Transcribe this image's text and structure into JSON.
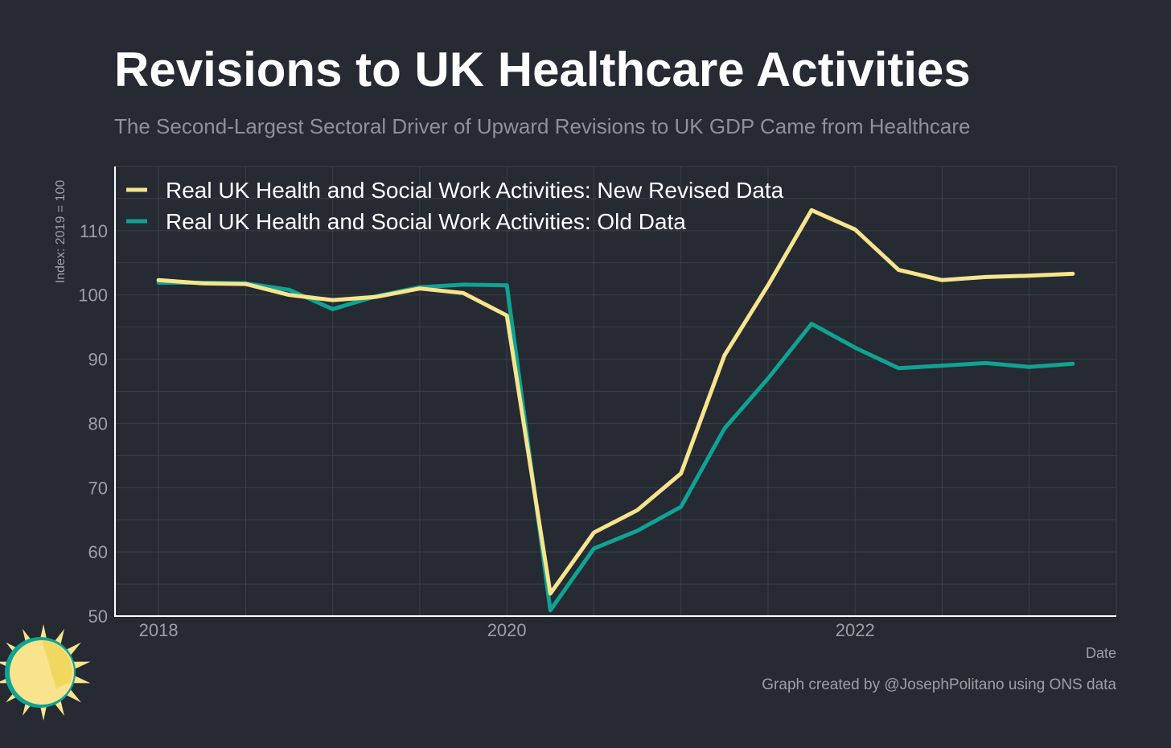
{
  "header": {
    "title": "Revisions to UK Healthcare Activities",
    "subtitle": "The Second-Largest Sectoral Driver of Upward Revisions to UK GDP Came from Healthcare"
  },
  "footer": {
    "credit": "Graph created by @JosephPolitano using ONS data"
  },
  "logo": {
    "icon": "sun-logo-icon"
  },
  "colors": {
    "background": "#252a33",
    "grid": "#3a404a",
    "axis": "#ffffff",
    "tick_text": "#9aa0a6",
    "new_series": "#f7e48c",
    "old_series": "#0fa394"
  },
  "chart_data": {
    "type": "line",
    "title": "Revisions to UK Healthcare Activities",
    "subtitle": "The Second-Largest Sectoral Driver of Upward Revisions to UK GDP Came from Healthcare",
    "xlabel": "Date",
    "ylabel": "Index: 2019 = 100",
    "xlim": [
      2017.75,
      2023.5
    ],
    "ylim": [
      50,
      120
    ],
    "xticks": [
      2018,
      2020,
      2022
    ],
    "yticks": [
      50,
      60,
      70,
      80,
      90,
      100,
      110
    ],
    "grid": true,
    "legend_position": "top-left",
    "x": [
      2018.0,
      2018.25,
      2018.5,
      2018.75,
      2019.0,
      2019.25,
      2019.5,
      2019.75,
      2020.0,
      2020.25,
      2020.5,
      2020.75,
      2021.0,
      2021.25,
      2021.5,
      2021.75,
      2022.0,
      2022.25,
      2022.5,
      2022.75,
      2023.0,
      2023.25
    ],
    "series": [
      {
        "name": "Real UK Health and Social Work Activities: New Revised Data",
        "color": "#f7e48c",
        "values": [
          102.3,
          101.8,
          101.7,
          100.0,
          99.2,
          99.7,
          101.0,
          100.3,
          96.8,
          53.5,
          63.0,
          66.5,
          72.2,
          90.6,
          101.5,
          113.2,
          110.2,
          103.9,
          102.3,
          102.8,
          103.0,
          103.3
        ]
      },
      {
        "name": "Real UK Health and Social Work Activities: Old Data",
        "color": "#0fa394",
        "values": [
          101.9,
          101.9,
          101.8,
          100.8,
          97.8,
          99.8,
          101.2,
          101.6,
          101.5,
          50.9,
          60.5,
          63.3,
          67.0,
          79.2,
          87.0,
          95.5,
          91.8,
          88.6,
          89.0,
          89.4,
          88.8,
          89.3
        ]
      }
    ]
  }
}
